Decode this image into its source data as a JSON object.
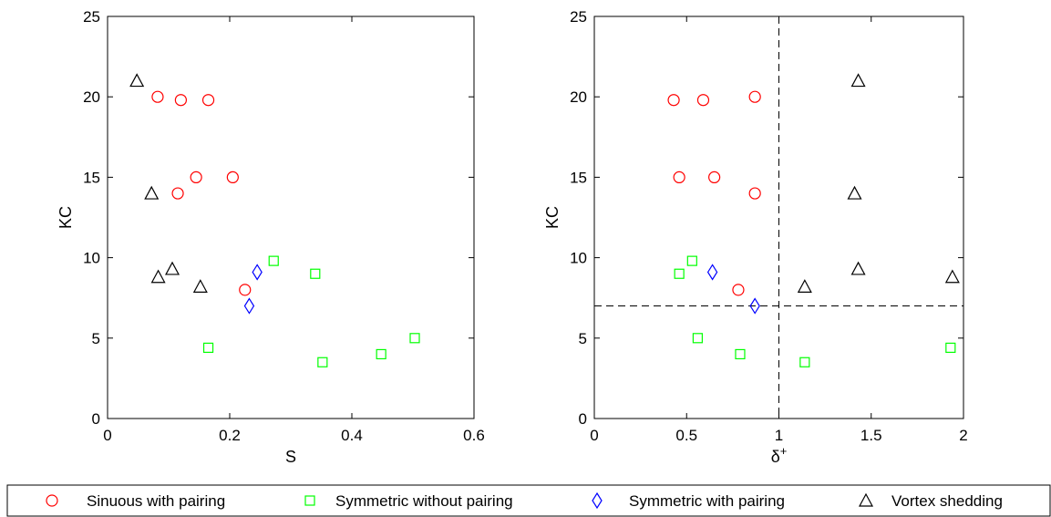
{
  "chart_data": [
    {
      "type": "scatter",
      "xlabel": "S",
      "ylabel": "KC",
      "xlim": [
        0,
        0.6
      ],
      "ylim": [
        0,
        25
      ],
      "xticks": [
        "0",
        "0.2",
        "0.4",
        "0.6"
      ],
      "yticks": [
        "0",
        "5",
        "10",
        "15",
        "20",
        "25"
      ],
      "series": [
        {
          "name": "Sinuous with pairing",
          "x": [
            0.082,
            0.12,
            0.165,
            0.145,
            0.115,
            0.205,
            0.225
          ],
          "y": [
            20,
            19.8,
            19.8,
            15,
            14,
            15,
            8
          ]
        },
        {
          "name": "Symmetric without pairing",
          "x": [
            0.165,
            0.272,
            0.34,
            0.352,
            0.448,
            0.503
          ],
          "y": [
            4.4,
            9.8,
            9,
            3.5,
            4,
            5
          ]
        },
        {
          "name": "Symmetric with pairing",
          "x": [
            0.245,
            0.232
          ],
          "y": [
            9.1,
            7
          ]
        },
        {
          "name": "Vortex shedding",
          "x": [
            0.048,
            0.072,
            0.083,
            0.106,
            0.152
          ],
          "y": [
            21,
            14,
            8.8,
            9.3,
            8.2
          ]
        }
      ]
    },
    {
      "type": "scatter",
      "xlabel": "δ",
      "xlabel_sup": "+",
      "ylabel": "KC",
      "xlim": [
        0,
        2
      ],
      "ylim": [
        0,
        25
      ],
      "xticks": [
        "0",
        "0.5",
        "1",
        "1.5",
        "2"
      ],
      "yticks": [
        "0",
        "5",
        "10",
        "15",
        "20",
        "25"
      ],
      "reference_lines": {
        "vertical_x": 1,
        "horizontal_y": 7,
        "style": "dashed"
      },
      "series": [
        {
          "name": "Sinuous with pairing",
          "x": [
            0.43,
            0.59,
            0.87,
            0.46,
            0.65,
            0.87,
            0.78
          ],
          "y": [
            19.8,
            19.8,
            20,
            15,
            15,
            14,
            8
          ]
        },
        {
          "name": "Symmetric without pairing",
          "x": [
            0.46,
            0.53,
            0.56,
            0.79,
            1.14,
            1.93
          ],
          "y": [
            9,
            9.8,
            5,
            4,
            3.5,
            4.4
          ]
        },
        {
          "name": "Symmetric with pairing",
          "x": [
            0.64,
            0.87
          ],
          "y": [
            9.1,
            7
          ]
        },
        {
          "name": "Vortex shedding",
          "x": [
            1.43,
            1.41,
            1.43,
            1.14,
            1.94
          ],
          "y": [
            21,
            14,
            9.3,
            8.2,
            8.8
          ]
        }
      ]
    }
  ],
  "legend": {
    "placement": "bottom",
    "items": [
      {
        "label": "Sinuous with pairing",
        "marker": "circle",
        "color": "#ff0000"
      },
      {
        "label": "Symmetric without pairing",
        "marker": "square",
        "color": "#00ff00"
      },
      {
        "label": "Symmetric with pairing",
        "marker": "diamond",
        "color": "#0000ff"
      },
      {
        "label": "Vortex shedding",
        "marker": "triangle",
        "color": "#000000"
      }
    ]
  },
  "marker_colors": {
    "circle": "#ff0000",
    "square": "#00ff00",
    "diamond": "#0000ff",
    "triangle": "#000000"
  }
}
